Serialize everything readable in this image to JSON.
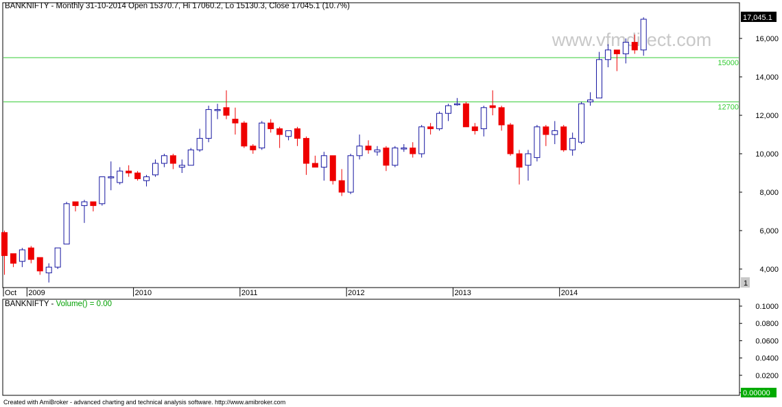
{
  "header": {
    "symbol_title": "BANKNIFTY - Monthly 31-10-2014 Open 15370.7, Hi 17060.2, Lo 15130.3, Close 17045.1 (10.7%)",
    "watermark": "www.vfmdirect.com",
    "last_price_label": "17,045.1",
    "pane_badge": "1"
  },
  "volume_pane": {
    "title_prefix": "BANKNIFTY - ",
    "title_indicator": "Volume() = 0.00",
    "value_label": "0.00000"
  },
  "footer": {
    "credit": "Created with AmiBroker - advanced charting and technical analysis software. http://www.amibroker.com"
  },
  "colors": {
    "up_candle": "#1414a0",
    "down_candle": "#ee0000",
    "hline": "#33cc33",
    "frame": "#000000",
    "volume_value_bg": "#00aa00"
  },
  "chart_data": [
    {
      "type": "candlestick",
      "title": "BANKNIFTY - Monthly",
      "interval": "monthly",
      "start_month": "2008-10",
      "y_ticks": [
        4000,
        6000,
        8000,
        10000,
        12000,
        14000,
        16000
      ],
      "y_tick_labels": [
        "4,000",
        "6,000",
        "8,000",
        "10,000",
        "12,000",
        "14,000",
        "16,000"
      ],
      "ylim": [
        3000,
        17700
      ],
      "x_labels": [
        {
          "month": "2008-10",
          "label": "Oct"
        },
        {
          "month": "2009-01",
          "label": "2009"
        },
        {
          "month": "2010-01",
          "label": "2010"
        },
        {
          "month": "2011-01",
          "label": "2011"
        },
        {
          "month": "2012-01",
          "label": "2012"
        },
        {
          "month": "2013-01",
          "label": "2013"
        },
        {
          "month": "2014-01",
          "label": "2014"
        }
      ],
      "horizontal_lines": [
        {
          "value": 15000,
          "label": "15000"
        },
        {
          "value": 12700,
          "label": "12700"
        }
      ],
      "columns": [
        "open",
        "high",
        "low",
        "close"
      ],
      "ohlc": [
        [
          5900,
          6000,
          3700,
          4700
        ],
        [
          4800,
          4800,
          4100,
          4300
        ],
        [
          4400,
          5100,
          4100,
          5000
        ],
        [
          5100,
          5200,
          4300,
          4500
        ],
        [
          4600,
          4600,
          3700,
          3900
        ],
        [
          3800,
          4300,
          3300,
          4100
        ],
        [
          4100,
          5100,
          4000,
          5100
        ],
        [
          5300,
          7500,
          5300,
          7400
        ],
        [
          7500,
          7500,
          7000,
          7300
        ],
        [
          7300,
          7600,
          6400,
          7500
        ],
        [
          7500,
          7500,
          7000,
          7300
        ],
        [
          7400,
          8800,
          7300,
          8800
        ],
        [
          8800,
          9600,
          8100,
          8800
        ],
        [
          8500,
          9300,
          8400,
          9100
        ],
        [
          9100,
          9400,
          8800,
          9000
        ],
        [
          9000,
          9100,
          8600,
          8700
        ],
        [
          8600,
          8900,
          8300,
          8800
        ],
        [
          8900,
          9700,
          8800,
          9500
        ],
        [
          9500,
          10000,
          9300,
          9900
        ],
        [
          9900,
          10000,
          9200,
          9500
        ],
        [
          9300,
          9700,
          9000,
          9400
        ],
        [
          9400,
          10300,
          9400,
          10200
        ],
        [
          10200,
          11300,
          10100,
          10800
        ],
        [
          10800,
          12500,
          10600,
          12300
        ],
        [
          12300,
          12600,
          11800,
          12300
        ],
        [
          12400,
          13300,
          11800,
          12000
        ],
        [
          11800,
          12400,
          11000,
          11600
        ],
        [
          11600,
          11700,
          10300,
          10400
        ],
        [
          10400,
          10500,
          10000,
          10200
        ],
        [
          10300,
          11700,
          10200,
          11600
        ],
        [
          11600,
          11800,
          11100,
          11300
        ],
        [
          11300,
          11400,
          10300,
          11000
        ],
        [
          10900,
          11200,
          10700,
          11200
        ],
        [
          11300,
          11400,
          10400,
          10800
        ],
        [
          10800,
          10900,
          8900,
          9500
        ],
        [
          9500,
          9900,
          9300,
          9300
        ],
        [
          9300,
          10100,
          8600,
          9900
        ],
        [
          9900,
          9900,
          8400,
          8600
        ],
        [
          8600,
          9200,
          7800,
          8000
        ],
        [
          8000,
          10000,
          7900,
          9900
        ],
        [
          9900,
          11000,
          9700,
          10400
        ],
        [
          10400,
          10700,
          10000,
          10200
        ],
        [
          10100,
          10400,
          9900,
          10200
        ],
        [
          10300,
          10400,
          9100,
          9400
        ],
        [
          9400,
          10400,
          9300,
          10300
        ],
        [
          10300,
          10500,
          10100,
          10300
        ],
        [
          10300,
          10600,
          9800,
          10000
        ],
        [
          10000,
          11500,
          9800,
          11400
        ],
        [
          11400,
          11600,
          11000,
          11300
        ],
        [
          11300,
          12200,
          11200,
          12100
        ],
        [
          12100,
          12600,
          11700,
          12500
        ],
        [
          12600,
          12900,
          12500,
          12600
        ],
        [
          12600,
          12700,
          11400,
          11400
        ],
        [
          11400,
          11600,
          11000,
          11200
        ],
        [
          11300,
          12500,
          10900,
          12400
        ],
        [
          12500,
          13300,
          12000,
          12400
        ],
        [
          12400,
          12500,
          11200,
          11500
        ],
        [
          11500,
          11600,
          9900,
          10000
        ],
        [
          10000,
          10200,
          8400,
          9300
        ],
        [
          9400,
          10200,
          8600,
          10000
        ],
        [
          9800,
          11500,
          9600,
          11400
        ],
        [
          11400,
          11500,
          10400,
          11000
        ],
        [
          11000,
          11700,
          10500,
          11200
        ],
        [
          11400,
          11500,
          10100,
          10200
        ],
        [
          10200,
          11100,
          9900,
          10800
        ],
        [
          10600,
          12700,
          10500,
          12600
        ],
        [
          12700,
          13200,
          12500,
          12800
        ],
        [
          12900,
          15300,
          12900,
          14900
        ],
        [
          14900,
          15700,
          14500,
          15400
        ],
        [
          15400,
          15400,
          14300,
          15200
        ],
        [
          15200,
          16000,
          14700,
          15800
        ],
        [
          15800,
          16200,
          15200,
          15400
        ],
        [
          15400,
          17100,
          15100,
          17000
        ]
      ],
      "volume_pane": {
        "y_ticks": [
          0,
          0.02,
          0.04,
          0.06,
          0.08,
          0.1
        ],
        "y_tick_labels": [
          "0",
          "0.0200",
          "0.0400",
          "0.0600",
          "0.0800",
          "0.1000"
        ],
        "ylim": [
          0,
          0.105
        ]
      }
    }
  ]
}
